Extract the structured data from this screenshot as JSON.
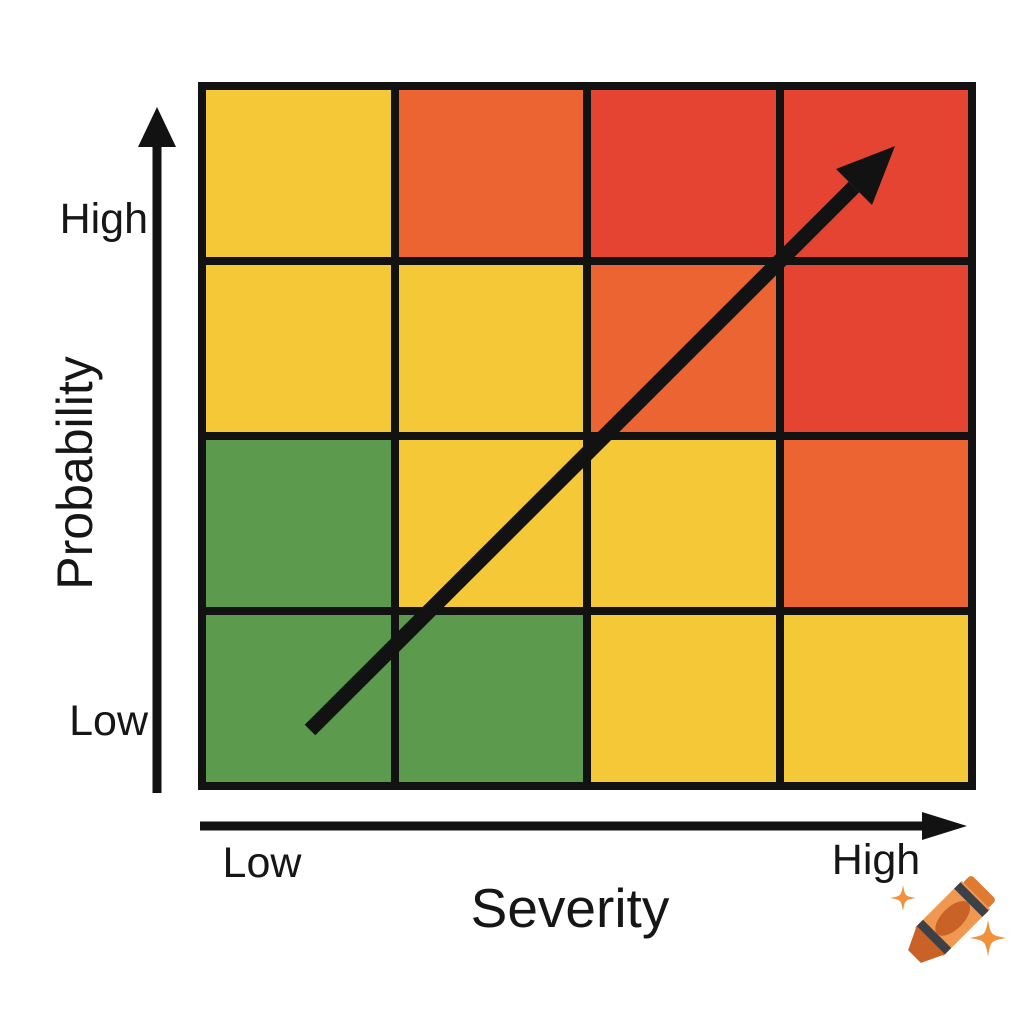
{
  "colors": {
    "line": "#121212",
    "text": "#161616",
    "crayon_body": "#F09750",
    "crayon_dark": "#C96227",
    "crayon_cap": "#DF7A30",
    "crayon_stripe": "#3C4148",
    "sparkle": "#F0913C"
  },
  "y_axis": {
    "label": "Probability",
    "high": "High",
    "low": "Low"
  },
  "x_axis": {
    "label": "Severity",
    "low": "Low",
    "high": "High"
  },
  "matrix": {
    "type": "heatmap",
    "rows": 4,
    "cols": 4,
    "palette": {
      "green": "#5C9B4E",
      "yellow": "#F5C837",
      "orange": "#EB6431",
      "red": "#E54432"
    },
    "cells": [
      [
        "yellow",
        "orange",
        "red",
        "red"
      ],
      [
        "yellow",
        "yellow",
        "orange",
        "red"
      ],
      [
        "green",
        "yellow",
        "yellow",
        "orange"
      ],
      [
        "green",
        "green",
        "yellow",
        "yellow"
      ]
    ],
    "trend_arrow": "low-severity/low-probability to high-severity/high-probability"
  },
  "icons": {
    "watermark": "crayon-icon",
    "sparkles": "sparkle-icon"
  }
}
